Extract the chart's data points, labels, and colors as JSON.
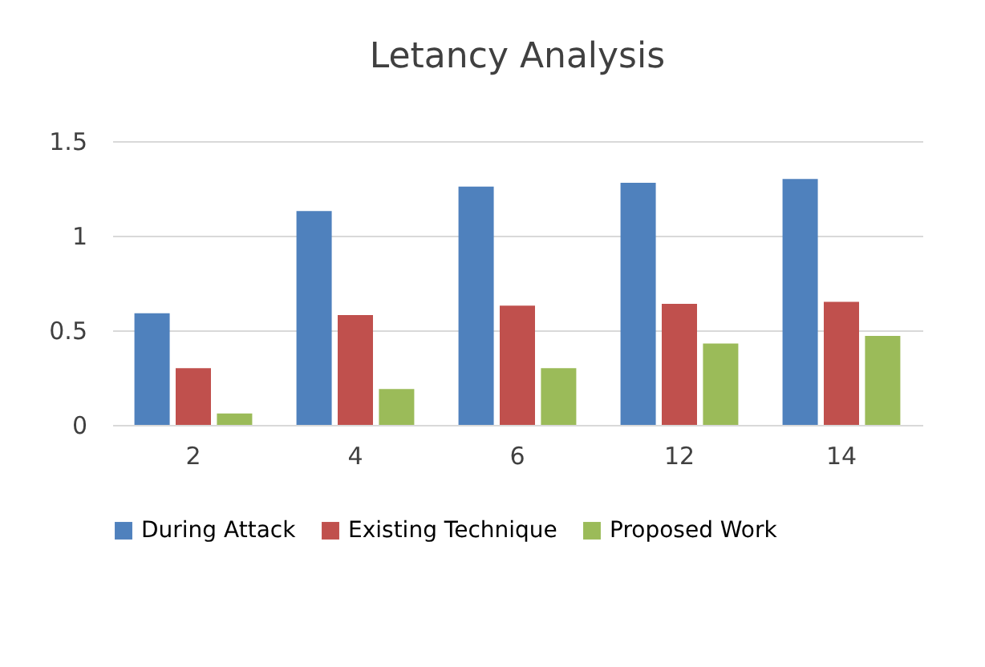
{
  "chart_data": {
    "type": "bar",
    "title": "Letancy Analysis",
    "categories": [
      "2",
      "4",
      "6",
      "12",
      "14"
    ],
    "series": [
      {
        "name": "During Attack",
        "color": "#4f81bd",
        "values": [
          0.59,
          1.13,
          1.26,
          1.28,
          1.3
        ]
      },
      {
        "name": "Existing Technique",
        "color": "#c0504d",
        "values": [
          0.3,
          0.58,
          0.63,
          0.64,
          0.65
        ]
      },
      {
        "name": "Proposed Work",
        "color": "#9bbb59",
        "values": [
          0.06,
          0.19,
          0.3,
          0.43,
          0.47
        ]
      }
    ],
    "ylim": [
      0,
      1.5
    ],
    "yticks": [
      0,
      0.5,
      1,
      1.5
    ],
    "grid": "y",
    "legend": "bottom"
  }
}
